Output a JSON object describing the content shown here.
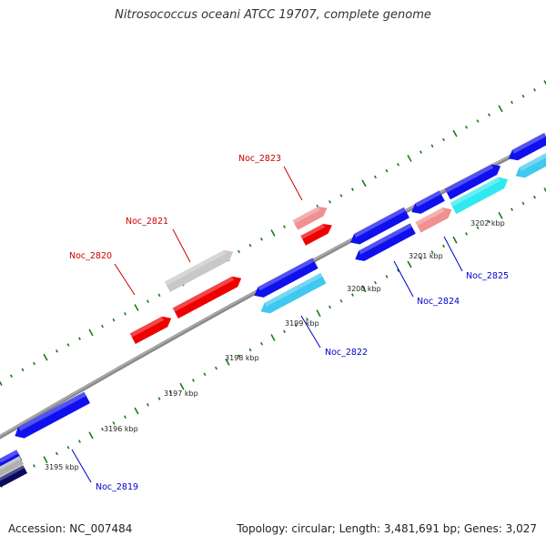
{
  "title": "Nitrosococcus oceani ATCC 19707, complete genome",
  "accession_label": "Accession: NC_007484",
  "summary_label": "Topology: circular; Length: 3,481,691 bp; Genes: 3,027",
  "colors": {
    "backbone": "#808080",
    "tick": "#1a7a1a",
    "forward_label": "#cc0000",
    "reverse_label": "#0000cc"
  },
  "kbp_labels": [
    "3195 kbp",
    "3196 kbp",
    "3197 kbp",
    "3198 kbp",
    "3199 kbp",
    "3200 kbp",
    "3201 kbp",
    "3202 kbp"
  ],
  "gene_labels": [
    {
      "text": "Noc_2819",
      "strand": "reverse"
    },
    {
      "text": "Noc_2820",
      "strand": "forward"
    },
    {
      "text": "Noc_2821",
      "strand": "forward"
    },
    {
      "text": "Noc_2822",
      "strand": "reverse"
    },
    {
      "text": "Noc_2823",
      "strand": "forward"
    },
    {
      "text": "Noc_2824",
      "strand": "reverse"
    },
    {
      "text": "Noc_2825",
      "strand": "reverse"
    }
  ]
}
